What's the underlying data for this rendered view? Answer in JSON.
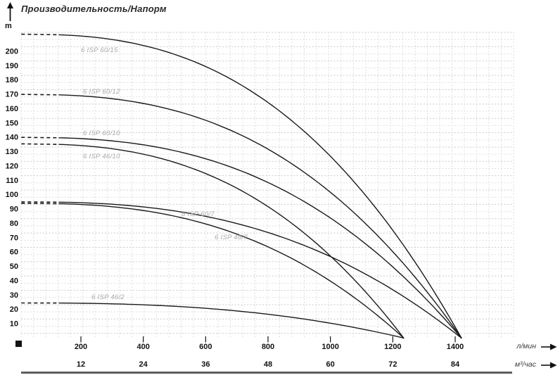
{
  "header": {
    "title": "Производительность/Напорм",
    "y_unit": "m"
  },
  "y_axis": {
    "unit": "m",
    "tick_labels": [
      200,
      190,
      180,
      170,
      160,
      150,
      140,
      130,
      120,
      110,
      100,
      90,
      80,
      70,
      60,
      50,
      40,
      30,
      20,
      10
    ]
  },
  "x_axis": {
    "primary_unit": "л/мин",
    "secondary_unit": "м³/час",
    "primary_ticks": [
      200,
      400,
      600,
      800,
      1000,
      1200,
      1400
    ],
    "secondary_ticks": [
      12,
      24,
      36,
      48,
      60,
      72,
      84
    ]
  },
  "colors": {
    "curve": "#1a1a1a",
    "grid_minor": "#dedede",
    "grid_major": "#c9c9c9",
    "curve_label": "#a9a9a9",
    "axis_text": "#111111",
    "divider": "#5e5e5e"
  },
  "chart_data": {
    "type": "line",
    "title": "Производительность/Напорм",
    "ylabel": "m",
    "xlabel_primary": "л/мин",
    "xlabel_secondary": "м³/час",
    "x_ticks_l_min": [
      200,
      400,
      600,
      800,
      1000,
      1200,
      1400
    ],
    "x_ticks_m3_h": [
      12,
      24,
      36,
      48,
      60,
      72,
      84
    ],
    "xlim": [
      0,
      1590
    ],
    "ylim": [
      0,
      213
    ],
    "grid": "dashed",
    "legend_position": "inline-curve-labels",
    "curve_model": {
      "formula": "H = H0 * (1 - (Q/Qmax)^2.6)",
      "dashed_segment_l_min": [
        9,
        130
      ]
    },
    "series": [
      {
        "name": "6 ISP 60/15",
        "H0_m": 212,
        "Qmax_l_min": 1420,
        "points_l_min": [
          0,
          200,
          400,
          600,
          800,
          1000,
          1200,
          1400,
          1420
        ],
        "points_head_m": [
          212,
          211,
          204,
          189,
          164,
          127,
          75,
          8,
          0
        ]
      },
      {
        "name": "6 ISP 60/12",
        "H0_m": 170,
        "Qmax_l_min": 1420,
        "points_l_min": [
          0,
          200,
          400,
          600,
          800,
          1000,
          1200,
          1400,
          1420
        ],
        "points_head_m": [
          170,
          169,
          164,
          152,
          132,
          102,
          60,
          6,
          0
        ]
      },
      {
        "name": "6 ISP 60/10",
        "H0_m": 140,
        "Qmax_l_min": 1420,
        "points_l_min": [
          0,
          200,
          400,
          600,
          800,
          1000,
          1200,
          1400,
          1420
        ],
        "points_head_m": [
          140,
          139,
          135,
          125,
          109,
          84,
          50,
          5,
          0
        ]
      },
      {
        "name": "6 ISP 46/10",
        "H0_m": 135.5,
        "Qmax_l_min": 1235,
        "points_l_min": [
          0,
          200,
          400,
          600,
          800,
          1000,
          1200,
          1235
        ],
        "points_head_m": [
          135,
          134,
          128,
          115,
          92,
          57,
          10,
          0
        ]
      },
      {
        "name": "6 ISP 60/7",
        "H0_m": 95,
        "Qmax_l_min": 1420,
        "points_l_min": [
          0,
          200,
          400,
          600,
          800,
          1000,
          1200,
          1400,
          1420
        ],
        "points_head_m": [
          95,
          94,
          91,
          85,
          74,
          57,
          34,
          3,
          0
        ]
      },
      {
        "name": "6 ISP 46/7",
        "H0_m": 94,
        "Qmax_l_min": 1235,
        "points_l_min": [
          0,
          200,
          400,
          600,
          800,
          1000,
          1200,
          1235
        ],
        "points_head_m": [
          94,
          93,
          89,
          80,
          64,
          40,
          7,
          0
        ]
      },
      {
        "name": "6 ISP 46/2",
        "H0_m": 24.5,
        "Qmax_l_min": 1235,
        "points_l_min": [
          0,
          200,
          400,
          600,
          800,
          1000,
          1200,
          1235
        ],
        "points_head_m": [
          24.5,
          24,
          23,
          21,
          17,
          10,
          2,
          0
        ]
      }
    ]
  }
}
